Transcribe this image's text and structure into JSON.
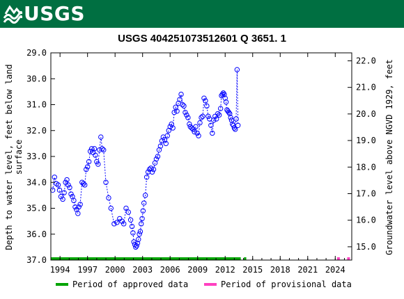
{
  "header": {
    "logo_text": "USGS",
    "background": "#006f41"
  },
  "chart_data": {
    "type": "scatter",
    "title": "USGS 404251073512601 Q  3651. 1",
    "ylabel_left": "Depth to water level, feet below land surface",
    "ylabel_right": "Groundwater level above NGVD 1929, feet",
    "ylim_left": [
      37.0,
      29.0
    ],
    "ylim_right": [
      14.5,
      22.3
    ],
    "xlim": [
      1993.0,
      2025.8
    ],
    "xticks": [
      1994,
      1997,
      2000,
      2003,
      2006,
      2009,
      2012,
      2015,
      2018,
      2021,
      2024
    ],
    "yticks_left": [
      "29.0",
      "30.0",
      "31.0",
      "32.0",
      "33.0",
      "34.0",
      "35.0",
      "36.0",
      "37.0"
    ],
    "yticks_right": [
      "15.0",
      "16.0",
      "17.0",
      "18.0",
      "19.0",
      "20.0",
      "21.0",
      "22.0"
    ],
    "series": [
      {
        "marker": "circle-open",
        "color": "#0000ff",
        "connected": true,
        "x": [
          1993.2,
          1993.4,
          1993.6,
          1993.8,
          1993.95,
          1994.1,
          1994.3,
          1994.45,
          1994.6,
          1994.75,
          1994.9,
          1995.05,
          1995.2,
          1995.35,
          1995.5,
          1995.65,
          1995.8,
          1995.95,
          1996.05,
          1996.2,
          1996.4,
          1996.55,
          1996.7,
          1996.85,
          1997.0,
          1997.15,
          1997.3,
          1997.45,
          1997.6,
          1997.75,
          1997.85,
          1998.0,
          1998.15,
          1998.3,
          1998.45,
          1998.6,
          1998.75,
          1999.0,
          1999.3,
          1999.55,
          1999.9,
          2000.2,
          2000.5,
          2000.75,
          2000.95,
          2001.2,
          2001.45,
          2001.7,
          2001.85,
          2001.95,
          2002.05,
          2002.15,
          2002.25,
          2002.35,
          2002.45,
          2002.55,
          2002.65,
          2002.75,
          2002.85,
          2002.95,
          2003.05,
          2003.15,
          2003.3,
          2003.45,
          2003.6,
          2003.75,
          2003.9,
          2004.05,
          2004.2,
          2004.35,
          2004.5,
          2004.65,
          2004.8,
          2004.95,
          2005.1,
          2005.25,
          2005.4,
          2005.55,
          2005.7,
          2005.85,
          2006.0,
          2006.15,
          2006.3,
          2006.45,
          2006.6,
          2006.75,
          2006.9,
          2007.05,
          2007.2,
          2007.35,
          2007.5,
          2007.65,
          2007.8,
          2007.95,
          2008.1,
          2008.2,
          2008.35,
          2008.5,
          2008.65,
          2008.8,
          2008.95,
          2009.1,
          2009.25,
          2009.4,
          2009.55,
          2009.7,
          2009.85,
          2010.0,
          2010.15,
          2010.3,
          2010.45,
          2010.6,
          2010.75,
          2010.9,
          2011.05,
          2011.2,
          2011.35,
          2011.5,
          2011.6,
          2011.7,
          2011.8,
          2011.9,
          2012.0,
          2012.1,
          2012.2,
          2012.3,
          2012.4,
          2012.5,
          2012.6,
          2012.7,
          2012.8,
          2012.9,
          2013.0,
          2013.1,
          2013.2,
          2013.3,
          2013.4,
          2014.15,
          2024.45,
          2025.55
        ],
        "y_left": [
          34.3,
          33.8,
          34.05,
          34.1,
          34.3,
          34.55,
          34.65,
          34.4,
          34.0,
          33.9,
          34.1,
          34.2,
          34.45,
          34.55,
          34.7,
          34.95,
          35.05,
          35.2,
          34.95,
          34.85,
          34.0,
          34.05,
          34.1,
          33.5,
          33.4,
          33.2,
          32.8,
          32.7,
          32.85,
          32.7,
          32.95,
          33.2,
          33.3,
          32.75,
          32.25,
          32.7,
          32.75,
          34.0,
          34.6,
          35.0,
          35.6,
          35.55,
          35.4,
          35.5,
          35.6,
          35.0,
          35.15,
          35.45,
          35.7,
          35.95,
          36.3,
          36.4,
          36.5,
          36.45,
          36.35,
          36.2,
          36.0,
          35.9,
          35.6,
          35.4,
          35.1,
          34.8,
          34.5,
          33.8,
          33.6,
          33.5,
          33.45,
          33.6,
          33.5,
          33.25,
          33.1,
          33.0,
          32.75,
          32.6,
          32.4,
          32.25,
          32.35,
          32.5,
          32.2,
          32.0,
          31.85,
          31.75,
          31.9,
          31.3,
          31.1,
          31.25,
          30.95,
          30.8,
          30.6,
          31.0,
          31.05,
          31.3,
          31.4,
          31.5,
          31.75,
          31.85,
          31.9,
          31.95,
          32.05,
          31.85,
          32.1,
          32.2,
          31.7,
          31.5,
          31.45,
          30.75,
          30.85,
          31.05,
          31.45,
          31.55,
          31.8,
          32.1,
          31.6,
          31.45,
          31.55,
          31.35,
          31.4,
          31.15,
          30.65,
          30.6,
          30.55,
          30.6,
          30.75,
          30.9,
          31.2,
          31.25,
          31.3,
          31.35,
          31.5,
          31.6,
          31.75,
          31.8,
          31.9,
          31.95,
          31.55,
          29.65,
          31.8
        ]
      }
    ],
    "periods": [
      {
        "from": 1993.0,
        "to": 2013.7,
        "color": "#00a400"
      },
      {
        "from": 2014.05,
        "to": 2014.3,
        "color": "#00a400"
      },
      {
        "from": 2024.2,
        "to": 2024.5,
        "color": "#ff40c0"
      },
      {
        "from": 2025.3,
        "to": 2025.6,
        "color": "#ff40c0"
      }
    ],
    "legend": [
      {
        "label": "Period of approved data",
        "color": "#00a400"
      },
      {
        "label": "Period of provisional data",
        "color": "#ff40c0"
      }
    ],
    "legend_position": "bottom"
  }
}
